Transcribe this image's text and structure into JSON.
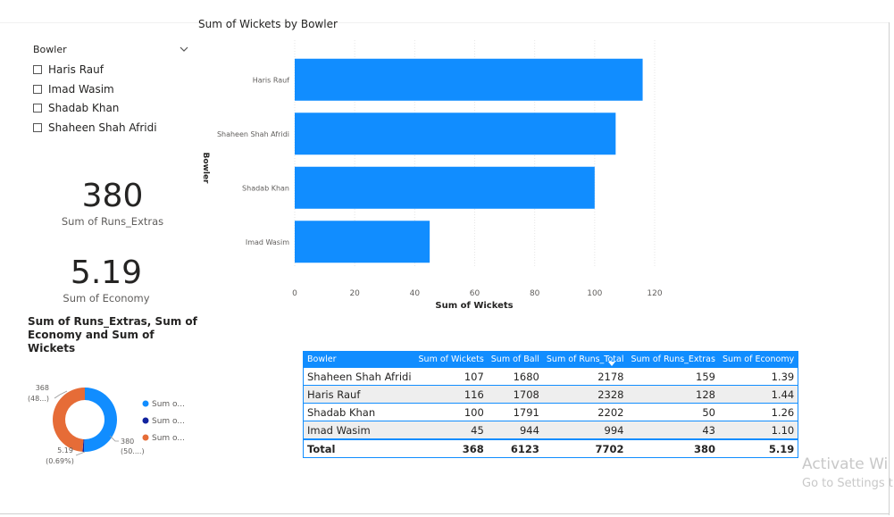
{
  "slicer": {
    "title": "Bowler",
    "items": [
      "Haris Rauf",
      "Imad Wasim",
      "Shadab Khan",
      "Shaheen Shah Afridi"
    ]
  },
  "cards": [
    {
      "value": "380",
      "label": "Sum of Runs_Extras"
    },
    {
      "value": "5.19",
      "label": "Sum of Economy"
    }
  ],
  "table": {
    "headers": [
      "Bowler",
      "Sum of Wickets",
      "Sum of Ball",
      "Sum of Runs_Total",
      "Sum of Runs_Extras",
      "Sum of Economy"
    ],
    "rows": [
      [
        "Shaheen Shah Afridi",
        "107",
        "1680",
        "2178",
        "159",
        "1.39"
      ],
      [
        "Haris Rauf",
        "116",
        "1708",
        "2328",
        "128",
        "1.44"
      ],
      [
        "Shadab Khan",
        "100",
        "1791",
        "2202",
        "50",
        "1.26"
      ],
      [
        "Imad Wasim",
        "45",
        "944",
        "994",
        "43",
        "1.10"
      ]
    ],
    "total": [
      "Total",
      "368",
      "6123",
      "7702",
      "380",
      "5.19"
    ]
  },
  "watermark": {
    "line1": "Activate Wi",
    "line2": "Go to Settings t"
  },
  "colors": {
    "bar": "#118dff",
    "donut_blue": "#118dff",
    "donut_navy": "#12239e",
    "donut_orange": "#e66c37",
    "header": "#118dff"
  },
  "chart_data": [
    {
      "type": "bar",
      "orientation": "horizontal",
      "title": "Sum of Wickets by Bowler",
      "xlabel": "Sum of Wickets",
      "ylabel": "Bowler",
      "categories": [
        "Haris Rauf",
        "Shaheen Shah Afridi",
        "Shadab Khan",
        "Imad Wasim"
      ],
      "values": [
        116,
        107,
        100,
        45
      ],
      "xlim": [
        0,
        120
      ],
      "xticks": [
        "0",
        "20",
        "40",
        "60",
        "80",
        "100",
        "120"
      ],
      "grid": true
    },
    {
      "type": "pie",
      "donut": true,
      "title": "Sum of Runs_Extras, Sum of Economy and Sum of Wickets",
      "series": [
        {
          "name": "Sum o...",
          "value": 380,
          "color": "#118dff"
        },
        {
          "name": "Sum o...",
          "value": 5.19,
          "color": "#12239e"
        },
        {
          "name": "Sum o...",
          "value": 368,
          "color": "#e66c37"
        }
      ],
      "data_labels": [
        {
          "value": "380",
          "pct": "(50....)"
        },
        {
          "value": "5.19",
          "pct": "(0.69%)"
        },
        {
          "value": "368",
          "pct": "(48...)"
        }
      ],
      "legend_position": "right"
    }
  ]
}
